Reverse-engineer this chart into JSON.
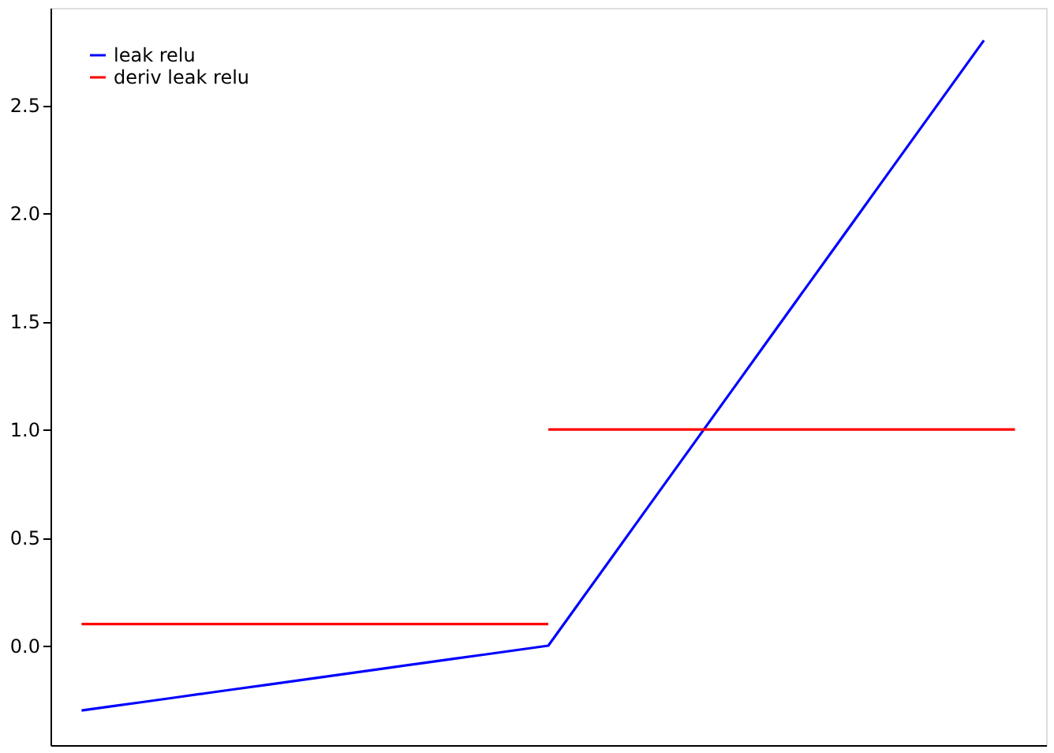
{
  "chart_data": {
    "type": "line",
    "ylim": [
      -0.46,
      2.95
    ],
    "categories": [
      null,
      null,
      null,
      null,
      null,
      null,
      null,
      null,
      null,
      null,
      null,
      null,
      null,
      null,
      null,
      null,
      null,
      null,
      null,
      null,
      null,
      null,
      null,
      null,
      null,
      null,
      null,
      null,
      null,
      null,
      null
    ],
    "yticks": [
      {
        "value": 0,
        "label": "0.0"
      },
      {
        "value": 0.5,
        "label": "0.5"
      },
      {
        "value": 1,
        "label": "1.0"
      },
      {
        "value": 1.5,
        "label": "1.5"
      },
      {
        "value": 2,
        "label": "2.0"
      },
      {
        "value": 2.5,
        "label": "2.5"
      }
    ],
    "tick_labels": "y",
    "grid": false,
    "legend": "top left",
    "series": [
      {
        "name": "leak relu",
        "color": "#0000ff",
        "values": [
          -0.3,
          -0.28,
          -0.26,
          -0.24,
          -0.22,
          -0.2,
          -0.18,
          -0.16,
          -0.14,
          -0.12,
          -0.1,
          -0.08,
          -0.06,
          -0.04,
          -0.02,
          0,
          0.2,
          0.4,
          0.6,
          0.8,
          1.0,
          1.2,
          1.4,
          1.6,
          1.8,
          2.0,
          2.2,
          2.4,
          2.6,
          2.8,
          null
        ]
      },
      {
        "name": "deriv leak relu",
        "color": "#ff0000",
        "values": [
          0.1,
          0.1,
          0.1,
          0.1,
          0.1,
          0.1,
          0.1,
          0.1,
          0.1,
          0.1,
          0.1,
          0.1,
          0.1,
          0.1,
          0.1,
          0.1,
          null,
          null,
          null,
          null,
          null,
          null,
          null,
          null,
          null,
          null,
          null,
          null,
          null,
          null,
          null
        ]
      },
      {
        "color": "#ff0000",
        "values": [
          null,
          null,
          null,
          null,
          null,
          null,
          null,
          null,
          null,
          null,
          null,
          null,
          null,
          null,
          null,
          1,
          1,
          1,
          1,
          1,
          1,
          1,
          1,
          1,
          1,
          1,
          1,
          1,
          1,
          1,
          1
        ]
      }
    ]
  }
}
